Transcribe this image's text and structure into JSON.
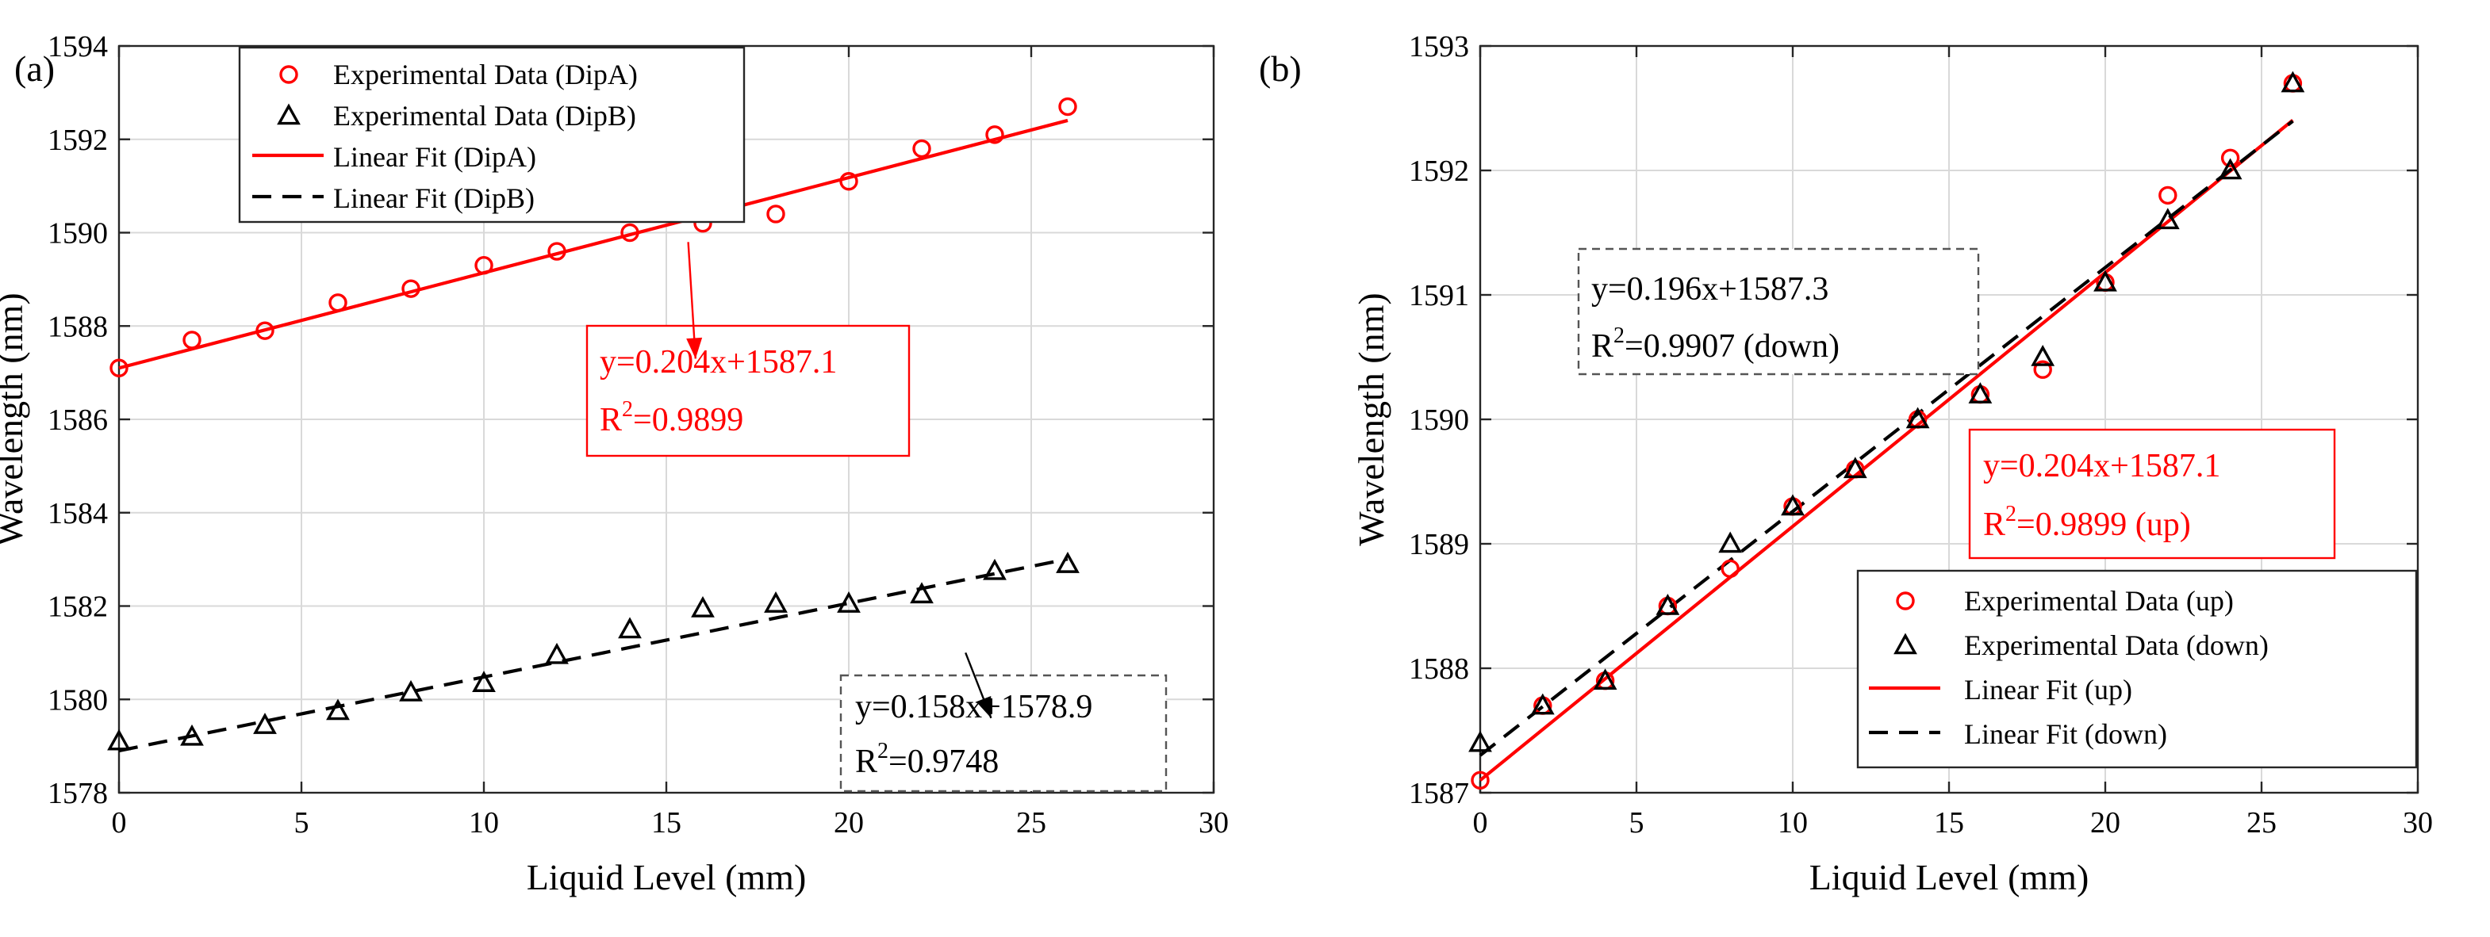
{
  "chart_data": [
    {
      "panel_label": "(a)",
      "type": "scatter",
      "xlabel": "Liquid Level (mm)",
      "ylabel": "Wavelength (nm)",
      "xlim": [
        0,
        30
      ],
      "ylim": [
        1578,
        1594
      ],
      "xticks": [
        0,
        5,
        10,
        15,
        20,
        25,
        30
      ],
      "yticks": [
        1578,
        1580,
        1582,
        1584,
        1586,
        1588,
        1590,
        1592,
        1594
      ],
      "grid": true,
      "legend_position": "top-left",
      "series": [
        {
          "name": "Experimental Data (DipA)",
          "kind": "markers",
          "marker": "circle",
          "color": "#ff0000",
          "x": [
            0,
            2,
            4,
            6,
            8,
            10,
            12,
            14,
            16,
            18,
            20,
            22,
            24,
            26
          ],
          "y": [
            1587.1,
            1587.7,
            1587.9,
            1588.5,
            1588.8,
            1589.3,
            1589.6,
            1590.0,
            1590.2,
            1590.4,
            1591.1,
            1591.8,
            1592.1,
            1592.7
          ]
        },
        {
          "name": "Experimental Data (DipB)",
          "kind": "markers",
          "marker": "triangle",
          "color": "#000000",
          "x": [
            0,
            2,
            4,
            6,
            8,
            10,
            12,
            14,
            16,
            18,
            20,
            22,
            24,
            26
          ],
          "y": [
            1579.1,
            1579.2,
            1579.45,
            1579.75,
            1580.15,
            1580.35,
            1580.95,
            1581.5,
            1581.95,
            1582.05,
            1582.05,
            1582.25,
            1582.75,
            1582.9
          ]
        },
        {
          "name": "Linear Fit (DipA)",
          "kind": "line",
          "dash": "solid",
          "color": "#ff0000",
          "slope": 0.204,
          "intercept": 1587.1,
          "x_range": [
            0,
            26
          ]
        },
        {
          "name": "Linear Fit (DipB)",
          "kind": "line",
          "dash": "dashed",
          "color": "#000000",
          "slope": 0.158,
          "intercept": 1578.9,
          "x_range": [
            0,
            26
          ]
        }
      ],
      "annotations": [
        {
          "equation": "y=0.204x+1587.1",
          "r2_value": "=0.9899",
          "color": "#ff0000",
          "box_style": "solid",
          "arrow_from": [
            15.6,
            1589.8
          ],
          "arrow_to": [
            15.8,
            1587.3
          ]
        },
        {
          "equation": "y=0.158x+1578.9",
          "r2_value": "=0.9748",
          "color": "#000000",
          "box_style": "dashed",
          "arrow_from": [
            23.2,
            1581.0
          ],
          "arrow_to": [
            23.9,
            1579.6
          ]
        }
      ]
    },
    {
      "panel_label": "(b)",
      "type": "scatter",
      "xlabel": "Liquid Level (mm)",
      "ylabel": "Wavelength (nm)",
      "xlim": [
        0,
        30
      ],
      "ylim": [
        1587,
        1593
      ],
      "xticks": [
        0,
        5,
        10,
        15,
        20,
        25,
        30
      ],
      "yticks": [
        1587,
        1588,
        1589,
        1590,
        1591,
        1592,
        1593
      ],
      "grid": true,
      "legend_position": "bottom-right",
      "series": [
        {
          "name": "Experimental Data (up)",
          "kind": "markers",
          "marker": "circle",
          "color": "#ff0000",
          "x": [
            0,
            2,
            4,
            6,
            8,
            10,
            12,
            14,
            16,
            18,
            20,
            22,
            24,
            26
          ],
          "y": [
            1587.1,
            1587.7,
            1587.9,
            1588.5,
            1588.8,
            1589.3,
            1589.6,
            1590.0,
            1590.2,
            1590.4,
            1591.1,
            1591.8,
            1592.1,
            1592.7
          ]
        },
        {
          "name": "Experimental Data (down)",
          "kind": "markers",
          "marker": "triangle",
          "color": "#000000",
          "x": [
            0,
            2,
            4,
            6,
            8,
            10,
            12,
            14,
            16,
            18,
            20,
            22,
            24,
            26
          ],
          "y": [
            1587.4,
            1587.7,
            1587.9,
            1588.5,
            1589.0,
            1589.3,
            1589.6,
            1590.0,
            1590.2,
            1590.5,
            1591.1,
            1591.6,
            1592.0,
            1592.7
          ]
        },
        {
          "name": "Linear Fit (up)",
          "kind": "line",
          "dash": "solid",
          "color": "#ff0000",
          "slope": 0.204,
          "intercept": 1587.1,
          "x_range": [
            0,
            26
          ]
        },
        {
          "name": "Linear Fit (down)",
          "kind": "line",
          "dash": "dashed",
          "color": "#000000",
          "slope": 0.196,
          "intercept": 1587.3,
          "x_range": [
            0,
            26
          ]
        }
      ],
      "annotations": [
        {
          "equation": "y=0.196x+1587.3",
          "r2_value": "=0.9907  (down)",
          "color": "#000000",
          "box_style": "dashed"
        },
        {
          "equation": "y=0.204x+1587.1",
          "r2_value": "=0.9899  (up)",
          "color": "#ff0000",
          "box_style": "solid"
        }
      ]
    }
  ]
}
